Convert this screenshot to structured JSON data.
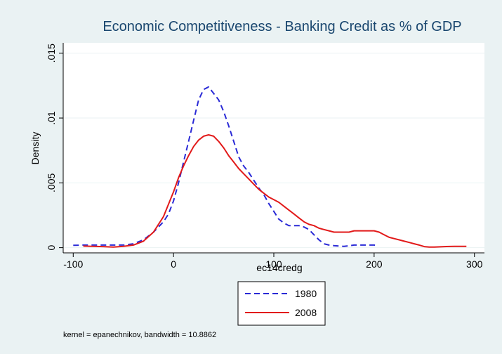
{
  "chart_data": {
    "type": "line",
    "title": "Economic Competitiveness - Banking Credit as % of GDP",
    "xlabel": "ec14credg",
    "ylabel": "Density",
    "xlim": [
      -110,
      310
    ],
    "ylim": [
      -0.0004,
      0.0158
    ],
    "x_ticks": [
      -100,
      0,
      100,
      200,
      300
    ],
    "x_tick_labels": [
      "-100",
      "0",
      "100",
      "200",
      "300"
    ],
    "y_ticks": [
      0,
      0.005,
      0.01,
      0.015
    ],
    "y_tick_labels": [
      "0",
      ".005",
      ".01",
      ".015"
    ],
    "grid": true,
    "legend_position": "bottom",
    "note": "kernel = epanechnikov, bandwidth = 10.8862",
    "series": [
      {
        "name": "1980",
        "color": "#2a2ad6",
        "dash": "dashed",
        "points": [
          [
            -100,
            0.00018
          ],
          [
            -90,
            0.0002
          ],
          [
            -80,
            0.0002
          ],
          [
            -70,
            0.0002
          ],
          [
            -60,
            0.0002
          ],
          [
            -50,
            0.0002
          ],
          [
            -40,
            0.0003
          ],
          [
            -30,
            0.0006
          ],
          [
            -20,
            0.0012
          ],
          [
            -10,
            0.002
          ],
          [
            -5,
            0.0026
          ],
          [
            0,
            0.0036
          ],
          [
            5,
            0.005
          ],
          [
            10,
            0.0066
          ],
          [
            15,
            0.0082
          ],
          [
            20,
            0.0098
          ],
          [
            25,
            0.0114
          ],
          [
            30,
            0.0122
          ],
          [
            35,
            0.0124
          ],
          [
            40,
            0.0119
          ],
          [
            45,
            0.0114
          ],
          [
            50,
            0.0105
          ],
          [
            55,
            0.0094
          ],
          [
            60,
            0.0082
          ],
          [
            65,
            0.007
          ],
          [
            70,
            0.0063
          ],
          [
            75,
            0.0058
          ],
          [
            80,
            0.0052
          ],
          [
            85,
            0.0046
          ],
          [
            90,
            0.0041
          ],
          [
            95,
            0.0034
          ],
          [
            100,
            0.0028
          ],
          [
            105,
            0.0022
          ],
          [
            110,
            0.0019
          ],
          [
            115,
            0.0017
          ],
          [
            120,
            0.0017
          ],
          [
            125,
            0.0017
          ],
          [
            130,
            0.0016
          ],
          [
            135,
            0.0014
          ],
          [
            140,
            0.001
          ],
          [
            145,
            0.0006
          ],
          [
            150,
            0.0003
          ],
          [
            155,
            0.0002
          ],
          [
            160,
            0.00015
          ],
          [
            170,
            0.0001
          ],
          [
            180,
            0.0002
          ],
          [
            190,
            0.0002
          ],
          [
            200,
            0.0002
          ],
          [
            203,
            0.00018
          ]
        ]
      },
      {
        "name": "2008",
        "color": "#e21a1a",
        "dash": "solid",
        "points": [
          [
            -90,
            0.00012
          ],
          [
            -80,
            0.0001
          ],
          [
            -70,
            8e-05
          ],
          [
            -60,
            5e-05
          ],
          [
            -50,
            0.0001
          ],
          [
            -40,
            0.0002
          ],
          [
            -30,
            0.0005
          ],
          [
            -20,
            0.0012
          ],
          [
            -10,
            0.0024
          ],
          [
            0,
            0.0043
          ],
          [
            5,
            0.0054
          ],
          [
            10,
            0.0063
          ],
          [
            15,
            0.0071
          ],
          [
            20,
            0.0078
          ],
          [
            25,
            0.0083
          ],
          [
            30,
            0.0086
          ],
          [
            35,
            0.0087
          ],
          [
            40,
            0.0086
          ],
          [
            45,
            0.0082
          ],
          [
            50,
            0.0077
          ],
          [
            55,
            0.0071
          ],
          [
            60,
            0.0066
          ],
          [
            65,
            0.0061
          ],
          [
            70,
            0.0057
          ],
          [
            75,
            0.0053
          ],
          [
            80,
            0.0049
          ],
          [
            85,
            0.0045
          ],
          [
            90,
            0.0042
          ],
          [
            95,
            0.0039
          ],
          [
            100,
            0.0037
          ],
          [
            105,
            0.0035
          ],
          [
            110,
            0.0032
          ],
          [
            115,
            0.0029
          ],
          [
            120,
            0.0026
          ],
          [
            125,
            0.0023
          ],
          [
            130,
            0.002
          ],
          [
            135,
            0.0018
          ],
          [
            140,
            0.0017
          ],
          [
            145,
            0.0015
          ],
          [
            150,
            0.0014
          ],
          [
            155,
            0.0013
          ],
          [
            160,
            0.0012
          ],
          [
            165,
            0.0012
          ],
          [
            170,
            0.0012
          ],
          [
            175,
            0.0012
          ],
          [
            180,
            0.0013
          ],
          [
            185,
            0.0013
          ],
          [
            190,
            0.0013
          ],
          [
            195,
            0.0013
          ],
          [
            200,
            0.0013
          ],
          [
            205,
            0.0012
          ],
          [
            210,
            0.001
          ],
          [
            215,
            0.0008
          ],
          [
            220,
            0.0007
          ],
          [
            225,
            0.0006
          ],
          [
            230,
            0.0005
          ],
          [
            235,
            0.0004
          ],
          [
            240,
            0.0003
          ],
          [
            245,
            0.0002
          ],
          [
            250,
            8e-05
          ],
          [
            255,
            5e-05
          ],
          [
            260,
            5e-05
          ],
          [
            270,
            8e-05
          ],
          [
            280,
            0.0001
          ],
          [
            292,
            0.0001
          ]
        ]
      }
    ]
  }
}
